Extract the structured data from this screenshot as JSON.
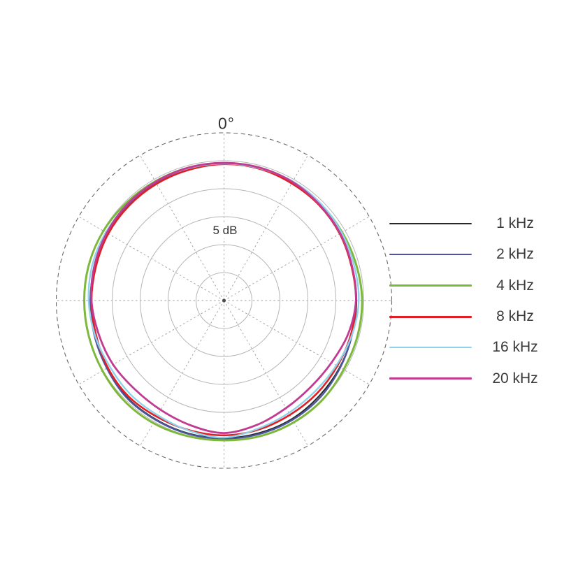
{
  "annotations": {
    "angle_top_label": "0°",
    "radial_scale_label": "5 dB"
  },
  "colors": {
    "background": "#ffffff",
    "grid_ring": "#b5b5b5",
    "outer_ring": "#6a6a6a",
    "spoke": "#9e9e9e",
    "text": "#3a3a3a",
    "center_dot": "#4f4f4f"
  },
  "chart_data": {
    "type": "line",
    "subtype": "polar-directivity-pattern",
    "title": "",
    "radial_unit": "dB",
    "ring_spacing_db": 5,
    "ring_levels_db": [
      -20,
      -15,
      -10,
      -5,
      0
    ],
    "outer_boundary_db": 5,
    "radial_scale_label": "5 dB",
    "angle_tick_labels": [
      "0°"
    ],
    "grid": {
      "rings": "solid",
      "outer_boundary": "dashed",
      "spokes_every_deg": 30,
      "spokes_style": "dashed"
    },
    "legend_position": "right",
    "angles_deg": [
      0,
      15,
      30,
      45,
      60,
      75,
      90,
      105,
      120,
      135,
      150,
      165,
      180,
      195,
      210,
      225,
      240,
      255,
      270,
      285,
      300,
      315,
      330,
      345
    ],
    "series": [
      {
        "name": "1 kHz",
        "color": "#282828",
        "stroke_width": 2.0,
        "db": [
          -0.5,
          -0.5,
          -0.6,
          -0.8,
          -1.0,
          -1.3,
          -1.3,
          -1.3,
          -1.1,
          -0.9,
          -0.6,
          -0.5,
          -0.4,
          -0.4,
          -0.5,
          -0.5,
          -0.9,
          -1.1,
          -1.3,
          -1.3,
          -1.1,
          -0.9,
          -0.8,
          -0.6
        ]
      },
      {
        "name": "2 kHz",
        "color": "#4c55a2",
        "stroke_width": 2.4,
        "db": [
          -0.5,
          -0.5,
          -0.6,
          -0.8,
          -1.0,
          -1.3,
          -1.4,
          -1.3,
          -1.0,
          -0.6,
          -0.4,
          -0.3,
          -0.3,
          -0.3,
          -0.4,
          -0.4,
          -0.8,
          -1.0,
          -1.1,
          -1.1,
          -1.0,
          -0.9,
          -0.8,
          -0.6
        ]
      },
      {
        "name": "4 kHz",
        "color": "#7db83c",
        "stroke_width": 3.0,
        "db": [
          -0.4,
          -0.4,
          -0.5,
          -0.6,
          -0.6,
          -0.5,
          -0.3,
          -0.3,
          -0.3,
          0.0,
          0.1,
          0.1,
          0.0,
          0.1,
          0.3,
          0.3,
          0.1,
          0.0,
          0.0,
          0.0,
          -0.1,
          -0.3,
          -0.4,
          -0.4
        ]
      },
      {
        "name": "8 kHz",
        "color": "#e01f24",
        "stroke_width": 2.6,
        "db": [
          -0.6,
          -0.6,
          -0.8,
          -0.9,
          -1.1,
          -1.4,
          -1.4,
          -1.5,
          -1.6,
          -1.5,
          -1.4,
          -1.1,
          -0.9,
          -1.0,
          -1.0,
          -0.8,
          -1.0,
          -1.3,
          -1.3,
          -1.3,
          -1.1,
          -1.0,
          -0.9,
          -0.8
        ]
      },
      {
        "name": "16 kHz",
        "color": "#90d2e9",
        "stroke_width": 2.4,
        "db": [
          -0.5,
          -0.5,
          -0.4,
          -0.5,
          -0.7,
          -0.9,
          -0.9,
          -1.3,
          -1.8,
          -2.0,
          -1.8,
          -1.3,
          -0.5,
          -0.9,
          -1.3,
          -1.3,
          -1.4,
          -1.1,
          -0.8,
          -0.6,
          -0.6,
          -0.6,
          -0.5,
          -0.5
        ]
      },
      {
        "name": "20 kHz",
        "color": "#c23b93",
        "stroke_width": 2.8,
        "db": [
          -0.4,
          -0.4,
          -0.5,
          -0.8,
          -1.0,
          -1.3,
          -1.4,
          -2.0,
          -2.8,
          -3.1,
          -2.8,
          -2.0,
          -1.3,
          -1.9,
          -2.4,
          -2.5,
          -2.1,
          -1.8,
          -1.3,
          -1.0,
          -0.8,
          -0.6,
          -0.5,
          -0.4
        ]
      }
    ]
  }
}
